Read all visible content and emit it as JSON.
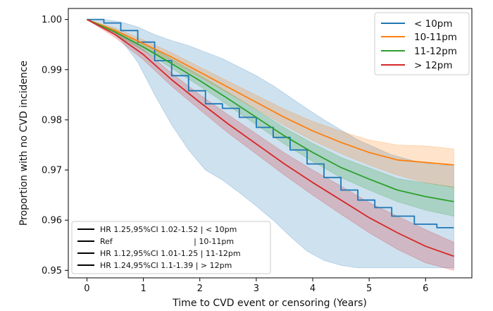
{
  "chart_data": {
    "type": "line",
    "xlabel": "Time to CVD event or censoring (Years)",
    "ylabel": "Proportion with no CVD incidence",
    "xlim": [
      -0.33,
      6.82
    ],
    "ylim": [
      0.9485,
      1.0022
    ],
    "x_ticks": [
      0,
      1,
      2,
      3,
      4,
      5,
      6
    ],
    "y_ticks": [
      0.95,
      0.96,
      0.97,
      0.98,
      0.99,
      1.0
    ],
    "x_tick_labels": [
      "0",
      "1",
      "2",
      "3",
      "4",
      "5",
      "6"
    ],
    "y_tick_labels": [
      "0.95",
      "0.96",
      "0.97",
      "0.98",
      "0.99",
      "1.00"
    ],
    "grid": false,
    "legend_position": "top-right",
    "series": [
      {
        "name": "< 10pm",
        "color": "#1f77b4",
        "step": true,
        "x": [
          0,
          0.3,
          0.6,
          0.9,
          1.2,
          1.5,
          1.8,
          2.1,
          2.4,
          2.7,
          3.0,
          3.3,
          3.6,
          3.9,
          4.2,
          4.5,
          4.8,
          5.1,
          5.4,
          5.8,
          6.2,
          6.5
        ],
        "y": [
          1.0,
          0.9993,
          0.9978,
          0.9955,
          0.9918,
          0.9888,
          0.9858,
          0.9832,
          0.9823,
          0.9805,
          0.9785,
          0.9765,
          0.974,
          0.9712,
          0.9685,
          0.966,
          0.964,
          0.9625,
          0.9608,
          0.9592,
          0.9585,
          0.9585
        ],
        "ci_lower": [
          1.0,
          0.9985,
          0.996,
          0.9915,
          0.985,
          0.979,
          0.974,
          0.97,
          0.968,
          0.9655,
          0.9628,
          0.96,
          0.9568,
          0.9538,
          0.952,
          0.951,
          0.9505,
          0.9505,
          0.9505,
          0.9505,
          0.9505,
          0.9505
        ],
        "ci_upper": [
          1.0,
          1.0,
          0.9995,
          0.9985,
          0.997,
          0.9958,
          0.9948,
          0.9935,
          0.9922,
          0.9905,
          0.9888,
          0.9868,
          0.9845,
          0.9822,
          0.98,
          0.978,
          0.976,
          0.9745,
          0.973,
          0.9718,
          0.971,
          0.971
        ]
      },
      {
        "name": "10-11pm",
        "color": "#ff7f0e",
        "step": false,
        "x": [
          0,
          0.5,
          1.0,
          1.5,
          2.0,
          2.5,
          3.0,
          3.5,
          4.0,
          4.5,
          5.0,
          5.5,
          6.0,
          6.5
        ],
        "y": [
          1.0,
          0.9978,
          0.9952,
          0.9925,
          0.9895,
          0.9865,
          0.9835,
          0.9805,
          0.9778,
          0.9755,
          0.9735,
          0.972,
          0.9715,
          0.971
        ],
        "ci_lower": [
          1.0,
          0.9973,
          0.9945,
          0.9916,
          0.9885,
          0.9853,
          0.9821,
          0.9789,
          0.9759,
          0.9733,
          0.971,
          0.969,
          0.9675,
          0.9665
        ],
        "ci_upper": [
          1.0,
          0.9983,
          0.9959,
          0.9934,
          0.9905,
          0.9877,
          0.9849,
          0.9821,
          0.9797,
          0.9777,
          0.976,
          0.975,
          0.9748,
          0.9742
        ]
      },
      {
        "name": "11-12pm",
        "color": "#2ca02c",
        "step": false,
        "x": [
          0,
          0.5,
          1.0,
          1.5,
          2.0,
          2.5,
          3.0,
          3.5,
          4.0,
          4.5,
          5.0,
          5.5,
          6.0,
          6.5
        ],
        "y": [
          1.0,
          0.9975,
          0.9945,
          0.9912,
          0.9878,
          0.9842,
          0.9805,
          0.9768,
          0.9735,
          0.9705,
          0.9682,
          0.966,
          0.9647,
          0.9637
        ],
        "ci_lower": [
          1.0,
          0.997,
          0.9938,
          0.9903,
          0.9867,
          0.9829,
          0.979,
          0.9752,
          0.9717,
          0.9685,
          0.966,
          0.9637,
          0.962,
          0.9608
        ],
        "ci_upper": [
          1.0,
          0.998,
          0.9952,
          0.9921,
          0.9889,
          0.9855,
          0.982,
          0.9784,
          0.9753,
          0.9725,
          0.9704,
          0.9683,
          0.9674,
          0.9666
        ]
      },
      {
        "name": "> 12pm",
        "color": "#d62728",
        "step": false,
        "x": [
          0,
          0.5,
          1.0,
          1.5,
          2.0,
          2.5,
          3.0,
          3.5,
          4.0,
          4.5,
          5.0,
          5.5,
          6.0,
          6.5
        ],
        "y": [
          1.0,
          0.997,
          0.993,
          0.988,
          0.9835,
          0.9792,
          0.9752,
          0.9712,
          0.9675,
          0.964,
          0.9605,
          0.9575,
          0.9548,
          0.9528
        ],
        "ci_lower": [
          1.0,
          0.9964,
          0.992,
          0.9867,
          0.982,
          0.9774,
          0.9732,
          0.969,
          0.965,
          0.9612,
          0.9575,
          0.9542,
          0.9515,
          0.95
        ],
        "ci_upper": [
          1.0,
          0.9976,
          0.994,
          0.9893,
          0.985,
          0.981,
          0.9772,
          0.9734,
          0.97,
          0.9668,
          0.9635,
          0.9608,
          0.9581,
          0.9556
        ]
      }
    ],
    "hr_annotations": [
      "HR 1.25,95%CI 1.02-1.52 | < 10pm",
      "Ref                                 | 10-11pm",
      "HR 1.12,95%CI 1.01-1.25 | 11-12pm",
      "HR 1.24,95%CI 1.1-1.39 | > 12pm"
    ]
  }
}
